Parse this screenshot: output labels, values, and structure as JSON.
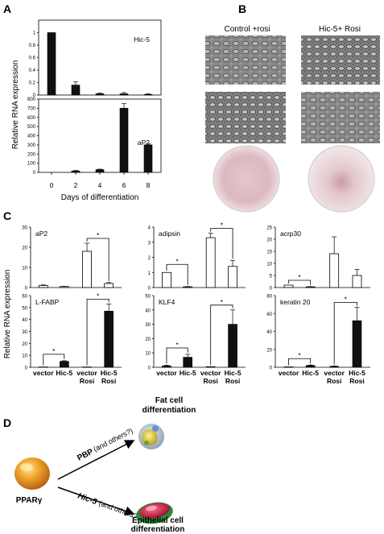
{
  "panel_labels": {
    "a": "A",
    "b": "B",
    "c": "C",
    "d": "D"
  },
  "panel_a": {
    "ylabel": "Relative RNA expression",
    "xlabel": "Days of differentiation",
    "x_ticks": [
      "0",
      "2",
      "4",
      "6",
      "8"
    ],
    "hic5_ticks": [
      "0",
      "0.2",
      "0.4",
      "0.6",
      "0.8",
      "1"
    ],
    "ap2_ticks": [
      "0",
      "100",
      "200",
      "300",
      "400",
      "500",
      "600",
      "700",
      "800"
    ]
  },
  "panel_b": {
    "col1": "Control +rosi",
    "col2": "Hic-5+ Rosi"
  },
  "panel_c": {
    "ylabel": "Relative RNA expression",
    "x_labels": [
      {
        "l1": "vector",
        "l2": ""
      },
      {
        "l1": "Hic-5",
        "l2": ""
      },
      {
        "l1": "vector",
        "l2": "Rosi"
      },
      {
        "l1": "Hic-5",
        "l2": "Rosi"
      }
    ],
    "star": "*"
  },
  "panel_d": {
    "ppar": "PPARγ",
    "pbp": "PBP",
    "pbp_note": "(and others?)",
    "hic5": "Hic-5",
    "hic5_note": "(and others?)",
    "fat_line1": "Fat cell",
    "fat_line2": "differentiation",
    "epi_line1": "Epithelial cell",
    "epi_line2": "differentiation"
  },
  "chart_data": [
    {
      "type": "bar",
      "title": "Hic-5",
      "x": [
        0,
        2,
        4,
        6,
        8
      ],
      "values": [
        1.0,
        0.16,
        0.02,
        0.02,
        0.01
      ],
      "errors": [
        0,
        0.05,
        0.01,
        0.02,
        0.01
      ],
      "ylim": [
        0,
        1.2
      ],
      "xlabel": "Days of differentiation",
      "ylabel": "Relative RNA expression"
    },
    {
      "type": "bar",
      "title": "aP2",
      "x": [
        0,
        2,
        4,
        6,
        8
      ],
      "values": [
        0,
        15,
        30,
        700,
        300
      ],
      "errors": [
        0,
        5,
        5,
        50,
        10
      ],
      "ylim": [
        0,
        800
      ],
      "xlabel": "Days of differentiation",
      "ylabel": "Relative RNA expression"
    },
    {
      "type": "bar",
      "title": "aP2",
      "categories": [
        "vector",
        "Hic-5",
        "vector Rosi",
        "Hic-5 Rosi"
      ],
      "values": [
        1.0,
        0.5,
        18,
        2.0
      ],
      "errors": [
        0.3,
        0.1,
        4,
        0.5
      ],
      "ylim": [
        0,
        30
      ],
      "yticks": [
        0,
        10,
        20,
        30
      ],
      "fill": "white"
    },
    {
      "type": "bar",
      "title": "adipsin",
      "categories": [
        "vector",
        "Hic-5",
        "vector Rosi",
        "Hic-5 Rosi"
      ],
      "values": [
        1.0,
        0.05,
        3.3,
        1.4
      ],
      "errors": [
        0,
        0.02,
        0.3,
        0.4
      ],
      "ylim": [
        0,
        4
      ],
      "yticks": [
        0,
        1,
        2,
        3,
        4
      ],
      "fill": "white"
    },
    {
      "type": "bar",
      "title": "acrp30",
      "categories": [
        "vector",
        "Hic-5",
        "vector Rosi",
        "Hic-5 Rosi"
      ],
      "values": [
        1.0,
        0.3,
        14,
        5
      ],
      "errors": [
        0,
        0.1,
        7,
        2.5
      ],
      "ylim": [
        0,
        25
      ],
      "yticks": [
        0,
        5,
        10,
        15,
        20,
        25
      ],
      "fill": "white"
    },
    {
      "type": "bar",
      "title": "L-FABP",
      "categories": [
        "vector",
        "Hic-5",
        "vector Rosi",
        "Hic-5 Rosi"
      ],
      "values": [
        0.3,
        5,
        0.3,
        47
      ],
      "errors": [
        0,
        0.5,
        0,
        6
      ],
      "ylim": [
        0,
        60
      ],
      "yticks": [
        0,
        10,
        20,
        30,
        40,
        50,
        60
      ],
      "fill": "black"
    },
    {
      "type": "bar",
      "title": "KLF4",
      "categories": [
        "vector",
        "Hic-5",
        "vector Rosi",
        "Hic-5 Rosi"
      ],
      "values": [
        1,
        7,
        0.5,
        30
      ],
      "errors": [
        0.5,
        2,
        0,
        10
      ],
      "ylim": [
        0,
        50
      ],
      "yticks": [
        0,
        10,
        20,
        30,
        40,
        50
      ],
      "fill": "black"
    },
    {
      "type": "bar",
      "title": "keratin 20",
      "categories": [
        "vector",
        "Hic-5",
        "vector Rosi",
        "Hic-5 Rosi"
      ],
      "values": [
        0.5,
        2,
        1,
        52
      ],
      "errors": [
        0,
        0.5,
        0.5,
        15
      ],
      "ylim": [
        0,
        80
      ],
      "yticks": [
        0,
        20,
        40,
        60,
        80
      ],
      "fill": "black"
    }
  ]
}
